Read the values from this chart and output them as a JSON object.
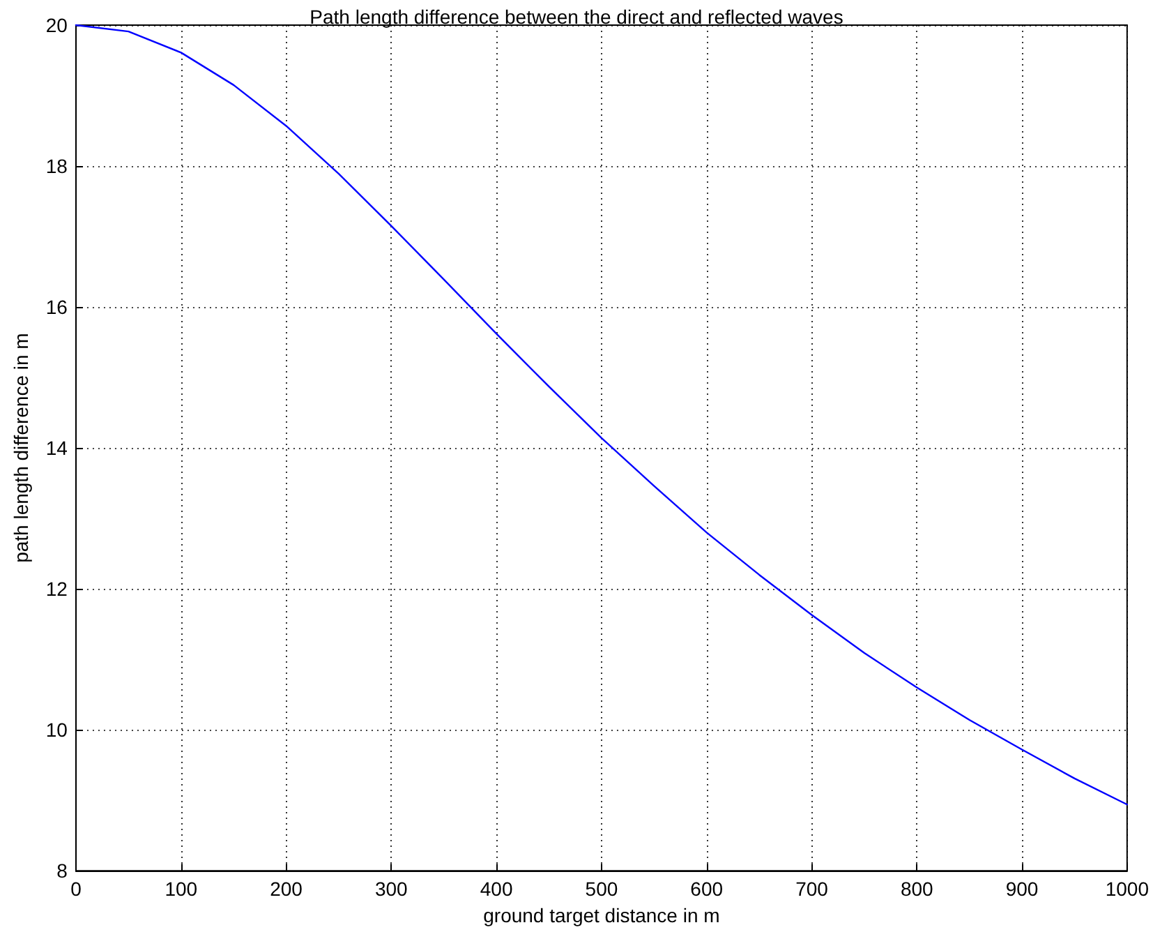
{
  "chart_data": {
    "type": "line",
    "title": "Path length difference between the direct and reflected waves",
    "xlabel": "ground target distance in m",
    "ylabel": "path length difference in m",
    "x": [
      0,
      50,
      100,
      150,
      200,
      250,
      300,
      350,
      400,
      450,
      500,
      550,
      600,
      650,
      700,
      750,
      800,
      850,
      900,
      950,
      1000
    ],
    "series": [
      {
        "color": "#0000ff",
        "values": [
          20,
          19.91,
          19.61,
          19.15,
          18.57,
          17.89,
          17.15,
          16.39,
          15.62,
          14.87,
          14.14,
          13.46,
          12.8,
          12.2,
          11.63,
          11.09,
          10.6,
          10.14,
          9.72,
          9.31,
          8.94
        ]
      }
    ],
    "xlim": [
      0,
      1000
    ],
    "xticks": [
      0,
      100,
      200,
      300,
      400,
      500,
      600,
      700,
      800,
      900,
      1000
    ],
    "ylim": [
      8,
      20
    ],
    "yticks": [
      8,
      10,
      12,
      14,
      16,
      18,
      20
    ],
    "grid": true,
    "marker": "none",
    "line_style": "solid"
  }
}
